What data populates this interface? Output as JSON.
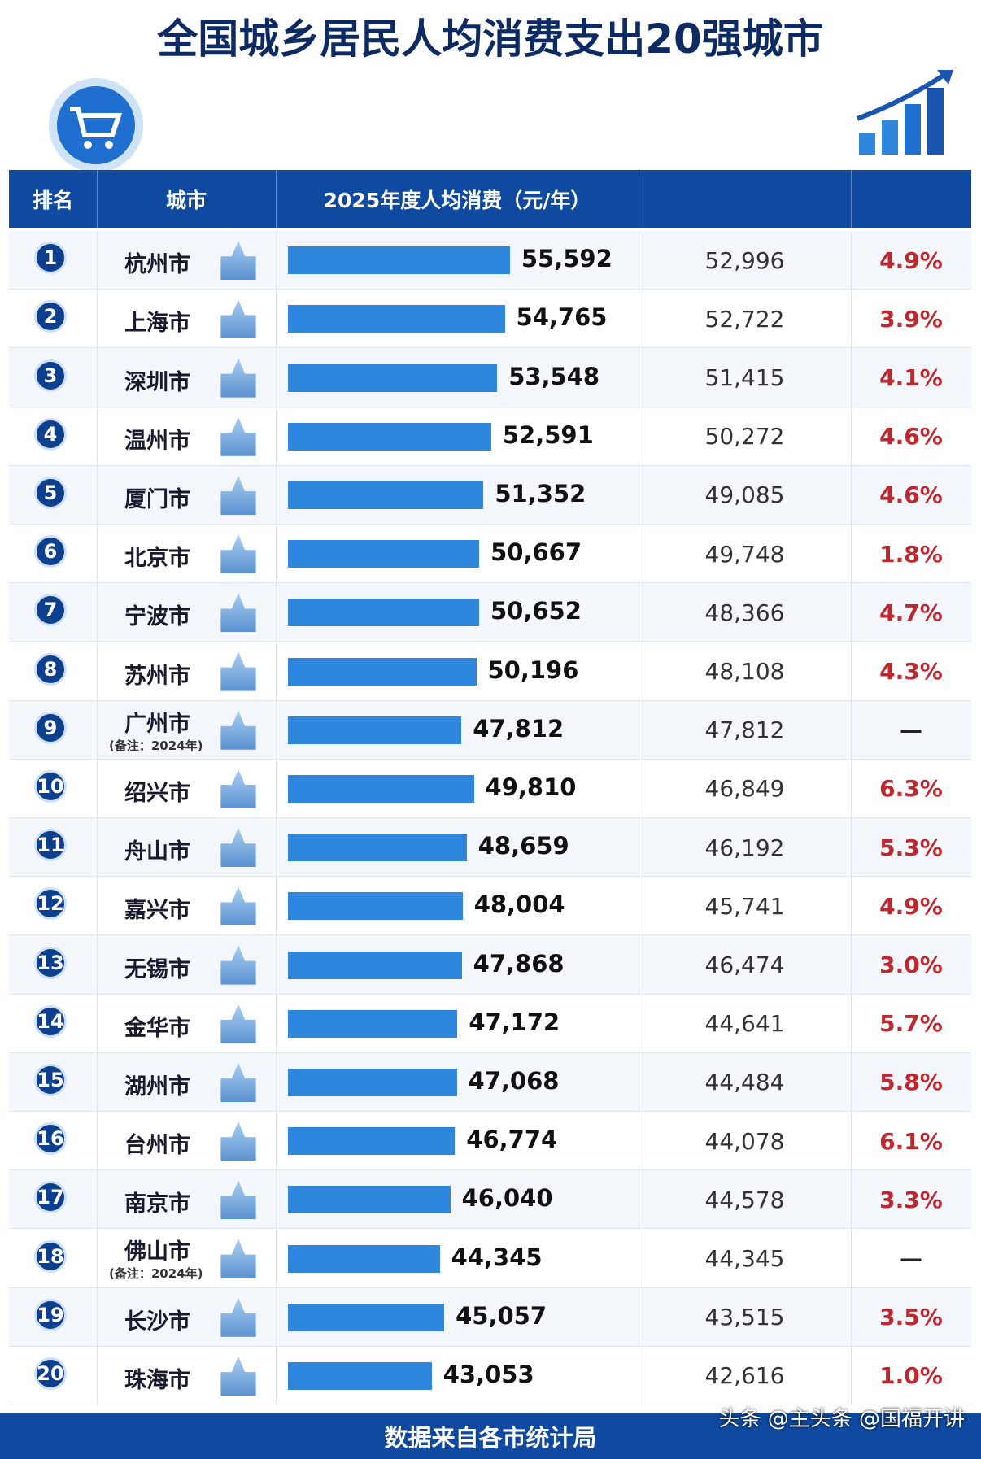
{
  "chart_data": {
    "type": "bar",
    "title": "全国城乡居民人均消费支出20强城市",
    "header": [
      "排名",
      "城市",
      "2025年度人均消费（元/年）"
    ],
    "ranks": [
      1,
      2,
      3,
      4,
      5,
      6,
      7,
      8,
      9,
      10,
      11,
      12,
      13,
      14,
      15,
      16,
      17,
      18,
      19,
      20
    ],
    "categories": [
      "杭州市",
      "上海市",
      "深圳市",
      "温州市",
      "厦门市",
      "北京市",
      "宁波市",
      "苏州市",
      "广州市",
      "绍兴市",
      "舟山市",
      "嘉兴市",
      "无锡市",
      "金华市",
      "湖州市",
      "台州市",
      "南京市",
      "佛山市",
      "长沙市",
      "珠海市"
    ],
    "notes": [
      null,
      null,
      null,
      null,
      null,
      null,
      null,
      null,
      "(备注：2024年)",
      null,
      null,
      null,
      null,
      null,
      null,
      null,
      null,
      "(备注：2024年)",
      null,
      null
    ],
    "values": [
      55592,
      54765,
      53548,
      52591,
      51352,
      50667,
      50652,
      50196,
      47812,
      49810,
      48659,
      48004,
      47868,
      47172,
      47068,
      46774,
      46040,
      44345,
      45057,
      43053
    ],
    "value_labels": [
      "55,592",
      "54,765",
      "53,548",
      "52,591",
      "51,352",
      "50,667",
      "50,652",
      "50,196",
      "47,812",
      "49,810",
      "48,659",
      "48,004",
      "47,868",
      "47,172",
      "47,068",
      "46,774",
      "46,040",
      "44,345",
      "45,057",
      "43,053"
    ],
    "color": "#2f86dd",
    "xlim": [
      20000,
      56000
    ],
    "previous": {
      "values": [
        52996,
        52722,
        51415,
        50272,
        49085,
        49748,
        48366,
        48108,
        47812,
        46849,
        46192,
        45741,
        46474,
        44641,
        44484,
        44078,
        44578,
        44345,
        43515,
        42616
      ],
      "value_labels": [
        "52,996",
        "52,722",
        "51,415",
        "50,272",
        "49,085",
        "49,748",
        "48,366",
        "48,108",
        "47,812",
        "46,849",
        "46,192",
        "45,741",
        "46,474",
        "44,641",
        "44,484",
        "44,078",
        "44,578",
        "44,345",
        "43,515",
        "42,616"
      ]
    },
    "growth": {
      "values": [
        4.9,
        3.9,
        4.1,
        4.6,
        4.6,
        1.8,
        4.7,
        4.3,
        null,
        6.3,
        5.3,
        4.9,
        3.0,
        5.7,
        5.8,
        6.1,
        3.3,
        null,
        3.5,
        1.0
      ],
      "value_labels": [
        "4.9%",
        "3.9%",
        "4.1%",
        "4.6%",
        "4.6%",
        "1.8%",
        "4.7%",
        "4.3%",
        "—",
        "6.3%",
        "5.3%",
        "4.9%",
        "3.0%",
        "5.7%",
        "5.8%",
        "6.1%",
        "3.3%",
        "—",
        "3.5%",
        "1.0%"
      ],
      "color": "#c0262d"
    },
    "source": "数据来自各市统计局",
    "watermark": "头条 @主头条 @国福开讲"
  }
}
